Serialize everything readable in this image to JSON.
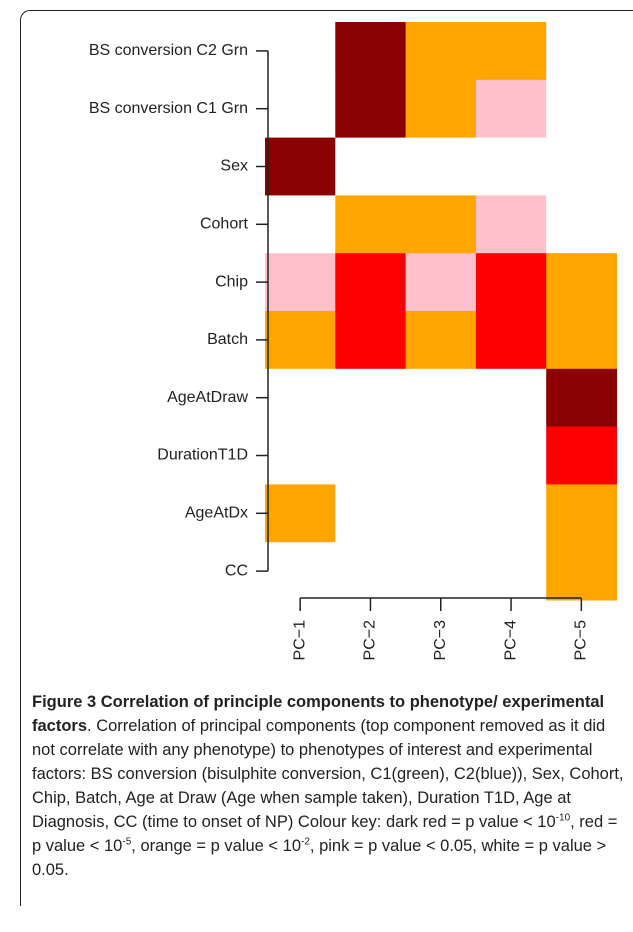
{
  "chart_data": {
    "type": "heatmap",
    "rows": [
      "BS conversion C2 Grn",
      "BS conversion C1 Grn",
      "Sex",
      "Cohort",
      "Chip",
      "Batch",
      "AgeAtDraw",
      "DurationT1D",
      "AgeAtDx",
      "CC"
    ],
    "columns": [
      "PC−1",
      "PC−2",
      "PC−3",
      "PC−4",
      "PC−5"
    ],
    "cells": [
      [
        "#ffffff",
        "#8b0000",
        "#ffa500",
        "#ffa500",
        "#ffffff"
      ],
      [
        "#ffffff",
        "#8b0000",
        "#ffa500",
        "#ffc0cb",
        "#ffffff"
      ],
      [
        "#8b0000",
        "#ffffff",
        "#ffffff",
        "#ffffff",
        "#ffffff"
      ],
      [
        "#ffffff",
        "#ffa500",
        "#ffa500",
        "#ffc0cb",
        "#ffffff"
      ],
      [
        "#ffc0cb",
        "#ff0000",
        "#ffc0cb",
        "#ff0000",
        "#ffa500"
      ],
      [
        "#ffa500",
        "#ff0000",
        "#ffa500",
        "#ff0000",
        "#ffa500"
      ],
      [
        "#ffffff",
        "#ffffff",
        "#ffffff",
        "#ffffff",
        "#8b0000"
      ],
      [
        "#ffffff",
        "#ffffff",
        "#ffffff",
        "#ffffff",
        "#ff0000"
      ],
      [
        "#ffa500",
        "#ffffff",
        "#ffffff",
        "#ffffff",
        "#ffa500"
      ],
      [
        "#ffffff",
        "#ffffff",
        "#ffffff",
        "#ffffff",
        "#ffa500"
      ]
    ]
  },
  "caption": {
    "title": "Figure 3 Correlation of principle components to phenotype/ experimental factors",
    "parts": [
      ". Correlation of principal components (top component removed as it did not correlate with any phenotype) to phenotypes of interest and experimental factors: BS conversion (bisulphite conversion, C1(green), C2(blue)), Sex, Cohort, Chip, Batch, Age at Draw (Age when sample taken), Duration T1D, Age at Diagnosis, CC (time to onset of NP) Colour key: dark red = p value < 10",
      "-10",
      ", red = p value < 10",
      "-5",
      ", orange = p value < 10",
      "-2",
      ", pink = p value < 0.05, white = p value > 0.05."
    ]
  }
}
